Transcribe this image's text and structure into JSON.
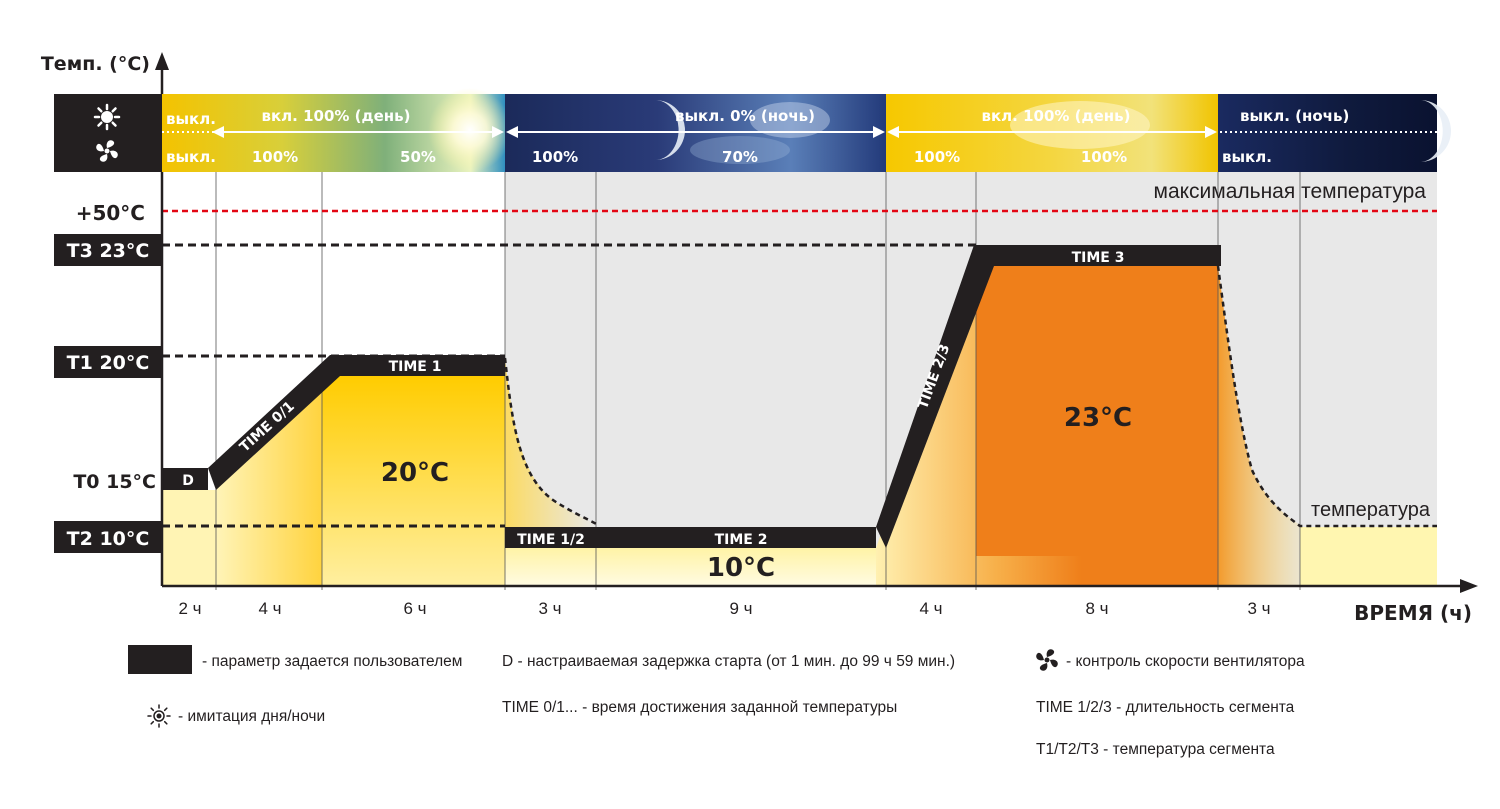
{
  "axis": {
    "y_title": "Темп. (°C)",
    "x_title": "ВРЕМЯ (ч)"
  },
  "temps": {
    "t3": "T3 23°C",
    "t1": "T1 20°C",
    "t0": "T0 15°C",
    "t2": "T2 10°C",
    "max": "+50°C"
  },
  "labels": {
    "max_temp": "максимальная температура",
    "temp": "температура"
  },
  "segments": {
    "delay": "D",
    "time01": "TIME 0/1",
    "time1": "TIME 1",
    "time12": "TIME 1/2",
    "time2": "TIME 2",
    "time23": "TIME 2/3",
    "time3": "TIME 3"
  },
  "zones": {
    "z1": "20°C",
    "z2": "10°C",
    "z3": "23°C"
  },
  "strip": {
    "light": {
      "off1": "выкл.",
      "day1": "вкл. 100% (день)",
      "night1": "выкл. 0% (ночь)",
      "day2": "вкл. 100% (день)",
      "night2": "выкл. (ночь)"
    },
    "fan": {
      "off1": "выкл.",
      "a": "100%",
      "b": "50%",
      "c": "100%",
      "d": "70%",
      "e": "100%",
      "f": "100%",
      "g": "выкл."
    }
  },
  "hours": [
    "2 ч",
    "4 ч",
    "6 ч",
    "3 ч",
    "9 ч",
    "4 ч",
    "8 ч",
    "3 ч"
  ],
  "legend": {
    "user_param": "- параметр задается пользователем",
    "delay": "D - настраиваемая задержка старта (от 1 мин. до 99 ч 59 мин.)",
    "fan": "- контроль скорости вентилятора",
    "daynight": "- имитация дня/ночи",
    "time01": "TIME 0/1... - время достижения заданной температуры",
    "time123": "TIME 1/2/3 - длительность сегмента",
    "t123": "T1/T2/T3 - температура сегмента"
  },
  "icons": {
    "light": "sun-icon",
    "fan": "fan-icon",
    "legend_sun": "sun-outline-icon"
  },
  "colors": {
    "yellow": "#FFCC00",
    "orange": "#EF7F1A",
    "night": "#1a2346",
    "max_line": "#E30613",
    "grey_zone": "#E8E8E8",
    "param": "#231F20"
  }
}
